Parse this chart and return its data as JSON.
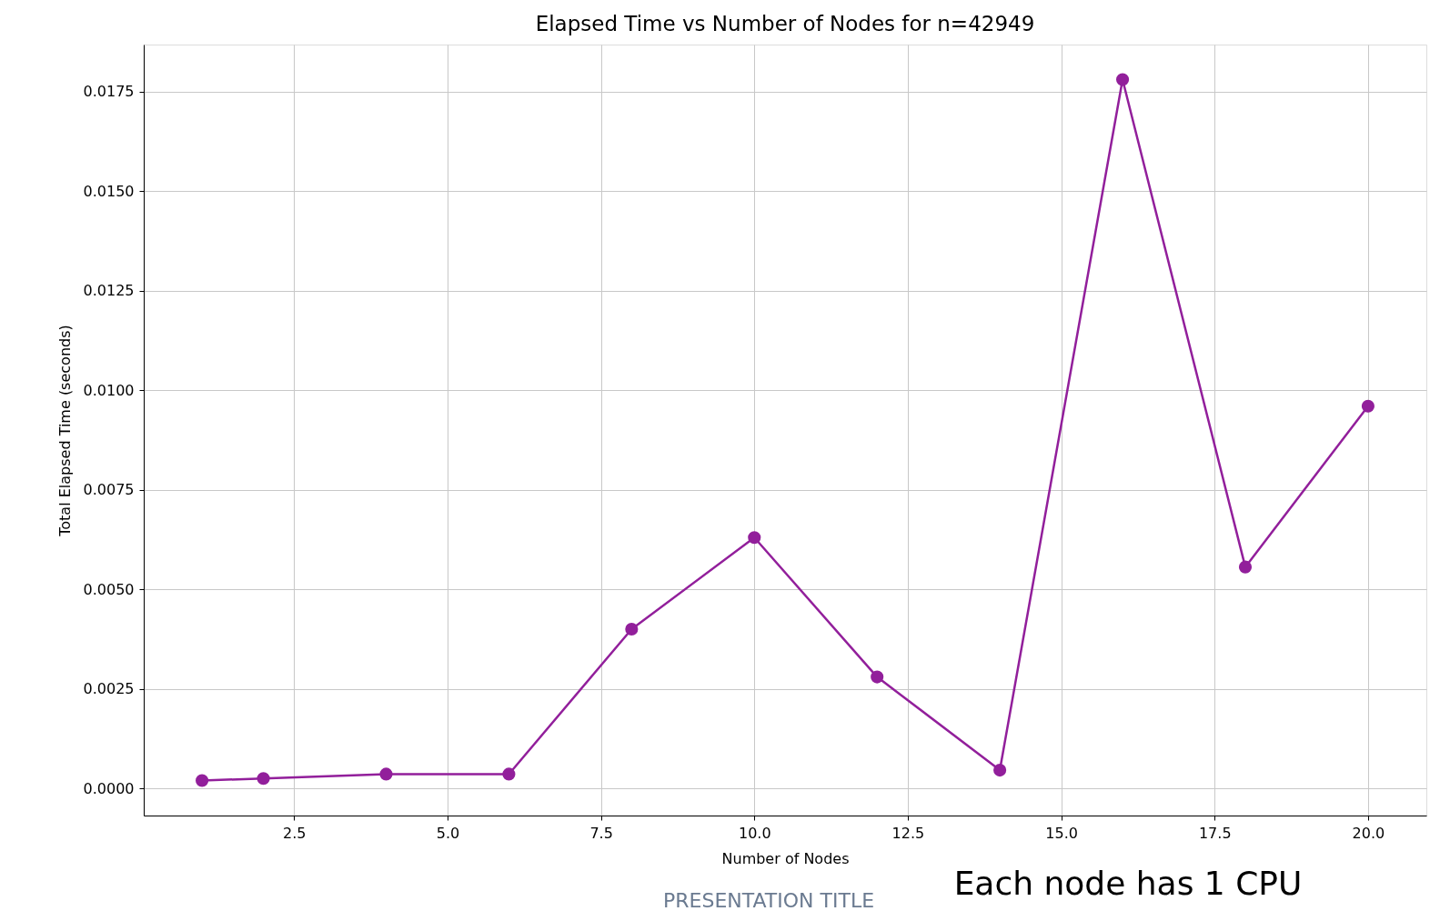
{
  "chart_data": {
    "type": "line",
    "title": "Elapsed Time vs Number of Nodes for n=42949",
    "xlabel": "Number of Nodes",
    "ylabel": "Total Elapsed Time (seconds)",
    "x": [
      1,
      2,
      4,
      6,
      8,
      10,
      12,
      14,
      16,
      18,
      20
    ],
    "series": [
      {
        "color": "#921f9b",
        "values": [
          0.0002,
          0.00025,
          0.00036,
          0.00036,
          0.004,
          0.0063,
          0.0028,
          0.00046,
          0.0178,
          0.00556,
          0.0096
        ]
      }
    ],
    "xlim": [
      0.05,
      20.95
    ],
    "ylim": [
      -0.00068,
      0.01868
    ],
    "xticks": [
      {
        "value": 2.5,
        "label": "2.5"
      },
      {
        "value": 5,
        "label": "5.0"
      },
      {
        "value": 7.5,
        "label": "7.5"
      },
      {
        "value": 10,
        "label": "10.0"
      },
      {
        "value": 12.5,
        "label": "12.5"
      },
      {
        "value": 15,
        "label": "15.0"
      },
      {
        "value": 17.5,
        "label": "17.5"
      },
      {
        "value": 20,
        "label": "20.0"
      }
    ],
    "yticks": [
      {
        "value": 0,
        "label": "0.0000"
      },
      {
        "value": 0.0025,
        "label": "0.0025"
      },
      {
        "value": 0.005,
        "label": "0.0050"
      },
      {
        "value": 0.0075,
        "label": "0.0075"
      },
      {
        "value": 0.01,
        "label": "0.0100"
      },
      {
        "value": 0.0125,
        "label": "0.0125"
      },
      {
        "value": 0.015,
        "label": "0.0150"
      },
      {
        "value": 0.0175,
        "label": "0.0175"
      }
    ],
    "grid": true,
    "marker": "circle",
    "line_style": "solid",
    "annotations": [
      "Each node has 1 CPU",
      "PRESENTATION TITLE"
    ]
  }
}
